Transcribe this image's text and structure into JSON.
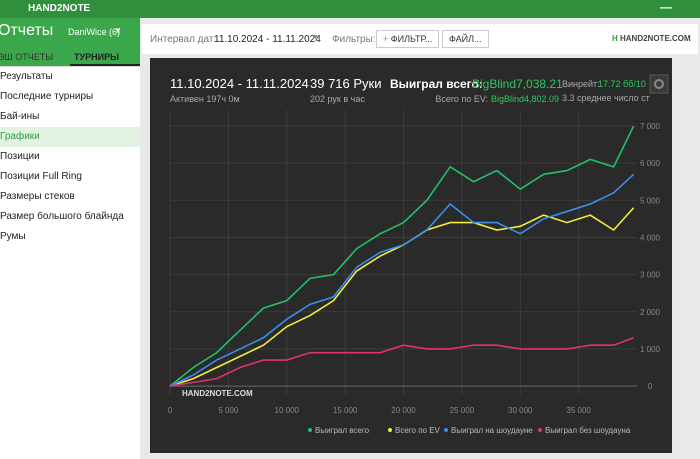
{
  "app": {
    "brand": "HAND2NOTE",
    "section": "Отчеты",
    "player": "DaniWice (6)"
  },
  "sidebar": {
    "tabs": [
      "ЭШ ОТЧЕТЫ",
      "ТУРНИРЫ"
    ],
    "menu": [
      "Результаты",
      "Последние турниры",
      "Бай-ины",
      "Графики",
      "Позиции",
      "Позиции Full Ring",
      "Размеры стеков",
      "Размер большого блайнда",
      "Румы"
    ]
  },
  "toolbar": {
    "interval_label": "Интервал дат:",
    "interval": "11.10.2024 - 11.11.2024",
    "filters_label": "Фильтры:",
    "filter_button": "ФИЛЬТР...",
    "file_button": "ФАЙЛ...",
    "logo": "HAND2NOTE.COM"
  },
  "stats": {
    "dates": "11.10.2024 - 11.11.2024",
    "active": "Активен 197ч 0м",
    "hands": "39 716 Руки",
    "per_hour": "202 рук в час",
    "won_label": "Выиграл всего:",
    "won_value": "BigBlind7,038.21",
    "ev_label": "Всего по EV:",
    "ev_value": "BigBlind4,802.09",
    "winrate_label": "Винрейт:",
    "winrate_value": "17.72 бб/10",
    "avg_players": "3.3 среднее число ст"
  },
  "chart_data": {
    "type": "line",
    "watermark": "HAND2NOTE.COM",
    "x": [
      0,
      2000,
      4000,
      6000,
      8000,
      10000,
      12000,
      14000,
      16000,
      18000,
      20000,
      22000,
      24000,
      26000,
      28000,
      30000,
      32000,
      34000,
      36000,
      38000,
      39716
    ],
    "series": [
      {
        "name": "Выиграл всего",
        "color": "#22c06a",
        "values": [
          0,
          500,
          900,
          1500,
          2100,
          2300,
          2900,
          3000,
          3700,
          4100,
          4400,
          5000,
          5900,
          5500,
          5800,
          5300,
          5700,
          5800,
          6100,
          5900,
          7000
        ]
      },
      {
        "name": "Всего по EV",
        "color": "#f2ec3c",
        "values": [
          0,
          200,
          500,
          800,
          1100,
          1600,
          1900,
          2300,
          3100,
          3500,
          3800,
          4200,
          4400,
          4400,
          4200,
          4300,
          4600,
          4400,
          4600,
          4200,
          4800
        ]
      },
      {
        "name": "Выиграл на шоудауне",
        "color": "#3a8fe8",
        "values": [
          0,
          300,
          700,
          1000,
          1300,
          1800,
          2200,
          2400,
          3200,
          3600,
          3800,
          4200,
          4900,
          4400,
          4400,
          4100,
          4500,
          4700,
          4900,
          5200,
          5700
        ]
      },
      {
        "name": "Выиграл без шоудауна",
        "color": "#e0336a",
        "values": [
          0,
          100,
          200,
          500,
          700,
          700,
          900,
          900,
          900,
          900,
          1100,
          1000,
          1000,
          1100,
          1100,
          1000,
          1000,
          1000,
          1100,
          1100,
          1300
        ]
      }
    ],
    "xlim": [
      0,
      40000
    ],
    "ylim": [
      -240,
      7430
    ],
    "xticks": [
      0,
      {
        "value": 5000,
        "label": "5 000"
      },
      {
        "value": 10000,
        "label": "10 000"
      },
      {
        "value": 15000,
        "label": "15 000"
      },
      {
        "value": 20000,
        "label": "20 000"
      },
      {
        "value": 25000,
        "label": "25 000"
      },
      {
        "value": 30000,
        "label": "30 000"
      },
      {
        "value": 35000,
        "label": "35 000"
      }
    ],
    "yticks": [
      0,
      {
        "value": 1000,
        "label": "1 000"
      },
      {
        "value": 2000,
        "label": "2 000"
      },
      {
        "value": 3000,
        "label": "3 000"
      },
      {
        "value": 4000,
        "label": "4 000"
      },
      {
        "value": 5000,
        "label": "5 000"
      },
      {
        "value": 6000,
        "label": "6 000"
      },
      {
        "value": 7000,
        "label": "7 000"
      }
    ],
    "grid": true
  }
}
